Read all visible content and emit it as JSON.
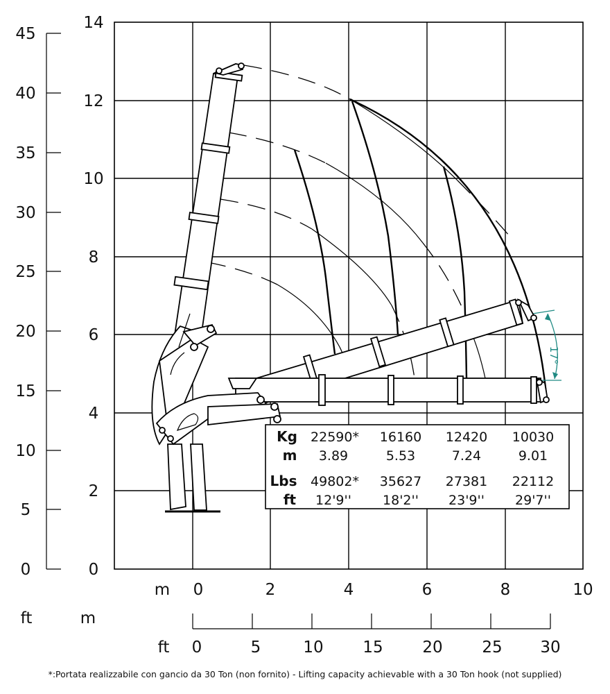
{
  "axes": {
    "left_ft_ticks": [
      "45",
      "40",
      "35",
      "30",
      "25",
      "20",
      "15",
      "10",
      "5",
      "0"
    ],
    "left_m_ticks": [
      "14",
      "12",
      "10",
      "8",
      "6",
      "4",
      "2",
      "0"
    ],
    "bottom_m_ticks": [
      "0",
      "2",
      "4",
      "6",
      "8",
      "10"
    ],
    "bottom_ft_ticks": [
      "0",
      "5",
      "10",
      "15",
      "20",
      "25",
      "30"
    ],
    "label_m": "m",
    "label_ft": "ft"
  },
  "angle_label": "17°",
  "table": {
    "row_labels": {
      "kg": "Kg",
      "m": "m",
      "lbs": "Lbs",
      "ft": "ft"
    },
    "columns": [
      {
        "kg": "22590*",
        "m": "3.89",
        "lbs": "49802*",
        "ft": "12'9''"
      },
      {
        "kg": "16160",
        "m": "5.53",
        "lbs": "35627",
        "ft": "18'2''"
      },
      {
        "kg": "12420",
        "m": "7.24",
        "lbs": "27381",
        "ft": "23'9''"
      },
      {
        "kg": "10030",
        "m": "9.01",
        "lbs": "22112",
        "ft": "29'7''"
      }
    ]
  },
  "footnote": "*:Portata realizzabile con gancio da 30 Ton (non fornito) - Lifting capacity achievable with a 30 Ton hook (not supplied)"
}
